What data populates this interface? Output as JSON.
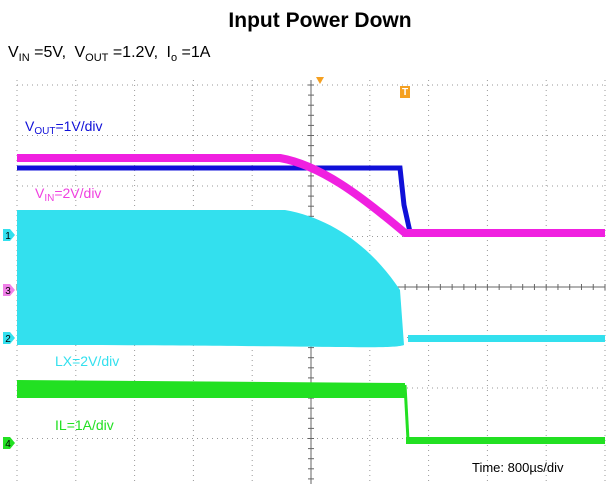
{
  "title": "Input Power Down",
  "conditions": [
    {
      "symbol": "V",
      "sub": "IN",
      "text": " =5V,"
    },
    {
      "symbol": "V",
      "sub": "OUT",
      "text": " =1.2V,"
    },
    {
      "symbol": "I",
      "sub": "o",
      "text": " =1A"
    }
  ],
  "traces": [
    {
      "symbol": "V",
      "sub": "OUT",
      "text": "=1V/div"
    },
    {
      "symbol": "V",
      "sub": "IN",
      "text": "=2V/div"
    },
    {
      "symbol": "LX",
      "text": "=2V/div"
    },
    {
      "symbol": "IL",
      "text": "=1A/div"
    }
  ],
  "channels": [
    "1",
    "3",
    "2",
    "4"
  ],
  "trigger": "T",
  "timebase": "Time: 800µs/div"
}
